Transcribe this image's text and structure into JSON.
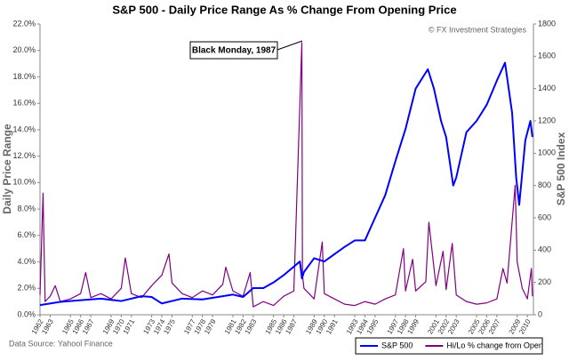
{
  "chart_data": {
    "type": "line",
    "title": "S&P 500 - Daily Price Range As % Change From Opening Price",
    "copyright": "© FX Investment Strategies",
    "source": "Data Source: Yahool Finance",
    "annotation": "Black Monday, 1987",
    "y_label": "Daily Price Range",
    "y2_label": "S&P 500 Index",
    "xlim": [
      1962,
      2010.6
    ],
    "xticks": [
      1962,
      1963,
      1965,
      1966,
      1967,
      1969,
      1970,
      1971,
      1973,
      1974,
      1975,
      1977,
      1978,
      1979,
      1981,
      1982,
      1983,
      1985,
      1986,
      1987,
      1989,
      1990,
      1991,
      1993,
      1994,
      1995,
      1997,
      1998,
      1999,
      2001,
      2002,
      2003,
      2005,
      2006,
      2007,
      2009,
      2010
    ],
    "ylim": [
      0,
      22
    ],
    "yticks": [
      {
        "value": 0,
        "label": "0.0%"
      },
      {
        "value": 2,
        "label": "2.0%"
      },
      {
        "value": 4,
        "label": "4.0%"
      },
      {
        "value": 6,
        "label": "6.0%"
      },
      {
        "value": 8,
        "label": "8.0%"
      },
      {
        "value": 10,
        "label": "10.0%"
      },
      {
        "value": 12,
        "label": "12.0%"
      },
      {
        "value": 14,
        "label": "14.0%"
      },
      {
        "value": 16,
        "label": "16.0%"
      },
      {
        "value": 18,
        "label": "18.0%"
      },
      {
        "value": 20,
        "label": "20.0%"
      },
      {
        "value": 22,
        "label": "22.0%"
      }
    ],
    "y2lim": [
      0,
      1800
    ],
    "y2ticks": [
      0,
      200,
      400,
      600,
      800,
      1000,
      1200,
      1400,
      1600,
      1800
    ],
    "series": [
      {
        "name": "S&P 500",
        "color": "#0000ff",
        "axis": "y2",
        "x": [
          1962,
          1964,
          1966,
          1968,
          1970,
          1972,
          1973,
          1974,
          1976,
          1978,
          1980,
          1981,
          1982,
          1983,
          1984,
          1985,
          1986,
          1987.6,
          1987.8,
          1988,
          1989,
          1990,
          1991,
          1992,
          1993,
          1994,
          1995,
          1996,
          1997,
          1998,
          1999,
          2000.2,
          2000.8,
          2001.5,
          2002,
          2002.7,
          2003,
          2004,
          2005,
          2006,
          2007,
          2007.8,
          2008.5,
          2008.9,
          2009.2,
          2009.8,
          2010.3,
          2010.5
        ],
        "values": [
          60,
          80,
          90,
          100,
          85,
          115,
          110,
          70,
          100,
          95,
          115,
          125,
          110,
          165,
          165,
          200,
          245,
          330,
          225,
          265,
          350,
          330,
          375,
          420,
          460,
          460,
          600,
          740,
          950,
          1150,
          1400,
          1520,
          1400,
          1200,
          1100,
          800,
          850,
          1130,
          1200,
          1300,
          1450,
          1560,
          1250,
          850,
          680,
          1080,
          1200,
          1100
        ]
      },
      {
        "name": "Hi/Lo % change from Open",
        "color": "#800080",
        "x": [
          1962.0,
          1962.3,
          1962.5,
          1963,
          1963.5,
          1964,
          1965,
          1966,
          1966.5,
          1967,
          1968,
          1969,
          1970,
          1970.4,
          1971,
          1972,
          1973,
          1974,
          1974.7,
          1975,
          1976,
          1977,
          1978,
          1979,
          1980,
          1980.3,
          1981,
          1982,
          1982.7,
          1983,
          1984,
          1985,
          1986,
          1987,
          1987.79,
          1987.85,
          1988,
          1989,
          1989.8,
          1990,
          1991,
          1992,
          1993,
          1994,
          1995,
          1996,
          1997,
          1997.8,
          1998,
          1998.7,
          1999,
          2000,
          2000.3,
          2001,
          2001.7,
          2002,
          2002.6,
          2003,
          2004,
          2005,
          2006,
          2007,
          2007.6,
          2008,
          2008.8,
          2009,
          2009.5,
          2010,
          2010.4,
          2010.5
        ],
        "values": [
          1.5,
          9.2,
          1.0,
          1.4,
          2.2,
          1.0,
          1.2,
          1.6,
          3.2,
          1.3,
          1.6,
          1.2,
          2.0,
          4.3,
          1.6,
          1.3,
          2.2,
          3.0,
          4.6,
          2.4,
          1.6,
          1.3,
          1.8,
          1.5,
          2.3,
          3.6,
          1.8,
          1.4,
          3.2,
          0.6,
          1.0,
          0.7,
          1.4,
          1.8,
          20.6,
          3.0,
          2.0,
          1.2,
          5.5,
          1.6,
          1.2,
          0.8,
          0.7,
          1.0,
          0.8,
          1.2,
          1.5,
          5.0,
          1.8,
          4.2,
          1.8,
          2.5,
          7.0,
          2.2,
          4.8,
          1.9,
          5.4,
          1.5,
          1.0,
          0.8,
          0.9,
          1.2,
          3.5,
          2.4,
          9.8,
          4.0,
          2.0,
          1.2,
          3.5,
          1.4
        ]
      }
    ]
  }
}
